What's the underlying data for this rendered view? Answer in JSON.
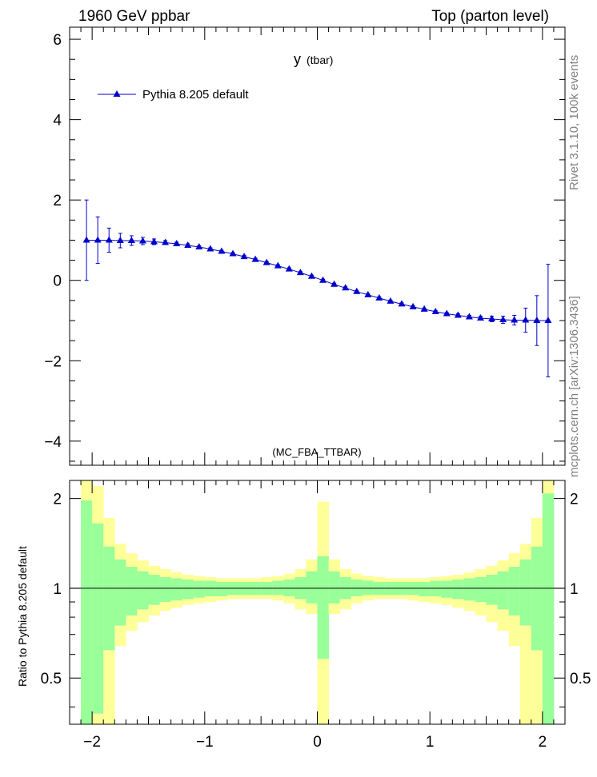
{
  "header": {
    "left": "1960 GeV ppbar",
    "right": "Top (parton level)"
  },
  "side_labels": {
    "rivet": "Rivet 3.1.10,  100k events",
    "mcplots": "mcplots.cern.ch [arXiv:1306.3436]"
  },
  "colors": {
    "series": "#0000cc",
    "band_inner": "#99ff99",
    "band_outer": "#ffff99",
    "watermark": "#999999"
  },
  "chart_data": [
    {
      "type": "line",
      "title": "y",
      "title_suffix": "(tbar)",
      "watermark": "(MC_FBA_TTBAR)",
      "ylim": [
        -4.6,
        6.3
      ],
      "xlim": [
        -2.2,
        2.2
      ],
      "yticks": [
        -4,
        -2,
        0,
        2,
        4,
        6
      ],
      "ytick_labels": [
        "−4",
        "−2",
        "0",
        "2",
        "4",
        "6"
      ],
      "legend": {
        "position": "top-left"
      },
      "series": [
        {
          "name": "Pythia 8.205 default",
          "marker": "triangle",
          "x": [
            -2.05,
            -1.95,
            -1.85,
            -1.75,
            -1.65,
            -1.55,
            -1.45,
            -1.35,
            -1.25,
            -1.15,
            -1.05,
            -0.95,
            -0.85,
            -0.75,
            -0.65,
            -0.55,
            -0.45,
            -0.35,
            -0.25,
            -0.15,
            -0.05,
            0.05,
            0.15,
            0.25,
            0.35,
            0.45,
            0.55,
            0.65,
            0.75,
            0.85,
            0.95,
            1.05,
            1.15,
            1.25,
            1.35,
            1.45,
            1.55,
            1.65,
            1.75,
            1.85,
            1.95,
            2.05
          ],
          "values": [
            1.0,
            1.0,
            1.0,
            0.99,
            0.99,
            0.98,
            0.96,
            0.94,
            0.91,
            0.87,
            0.83,
            0.78,
            0.72,
            0.66,
            0.59,
            0.52,
            0.44,
            0.36,
            0.28,
            0.19,
            0.1,
            0.0,
            -0.1,
            -0.19,
            -0.28,
            -0.36,
            -0.44,
            -0.52,
            -0.59,
            -0.66,
            -0.72,
            -0.78,
            -0.83,
            -0.87,
            -0.91,
            -0.94,
            -0.96,
            -0.98,
            -0.99,
            -0.99,
            -1.0,
            -1.0
          ],
          "errors": [
            1.0,
            0.58,
            0.3,
            0.18,
            0.12,
            0.09,
            0.07,
            0.05,
            0.04,
            0.04,
            0.03,
            0.03,
            0.03,
            0.03,
            0.03,
            0.03,
            0.03,
            0.03,
            0.03,
            0.03,
            0.03,
            0.03,
            0.03,
            0.03,
            0.03,
            0.03,
            0.03,
            0.03,
            0.03,
            0.03,
            0.03,
            0.03,
            0.03,
            0.04,
            0.04,
            0.05,
            0.07,
            0.09,
            0.12,
            0.3,
            0.62,
            1.4
          ]
        }
      ]
    },
    {
      "type": "area",
      "ylabel": "Ratio to Pythia 8.205 default",
      "ylim": [
        0.35,
        2.3
      ],
      "xlim": [
        -2.2,
        2.2
      ],
      "yticks": [
        0.5,
        1,
        2
      ],
      "ytick_labels": [
        "0.5",
        "1",
        "2"
      ],
      "xticks": [
        -2,
        -1,
        0,
        1,
        2
      ],
      "xtick_labels": [
        "−2",
        "−1",
        "0",
        "1",
        "2"
      ],
      "reference_line": 1,
      "bin_edges": [
        -2.1,
        -2.0,
        -1.9,
        -1.8,
        -1.7,
        -1.6,
        -1.5,
        -1.4,
        -1.3,
        -1.2,
        -1.1,
        -1.0,
        -0.9,
        -0.8,
        -0.7,
        -0.6,
        -0.5,
        -0.4,
        -0.3,
        -0.2,
        -0.1,
        0.0,
        0.1,
        0.2,
        0.3,
        0.4,
        0.5,
        0.6,
        0.7,
        0.8,
        0.9,
        1.0,
        1.1,
        1.2,
        1.3,
        1.4,
        1.5,
        1.6,
        1.7,
        1.8,
        1.9,
        2.0,
        2.1
      ],
      "inner_band": {
        "upper": [
          1.97,
          1.65,
          1.38,
          1.25,
          1.18,
          1.14,
          1.11,
          1.09,
          1.08,
          1.07,
          1.06,
          1.06,
          1.05,
          1.05,
          1.05,
          1.05,
          1.05,
          1.06,
          1.07,
          1.09,
          1.14,
          1.28,
          1.14,
          1.09,
          1.07,
          1.06,
          1.05,
          1.05,
          1.05,
          1.05,
          1.05,
          1.06,
          1.06,
          1.07,
          1.08,
          1.09,
          1.11,
          1.14,
          1.18,
          1.25,
          1.38,
          2.08
        ],
        "lower": [
          0.35,
          0.38,
          0.62,
          0.75,
          0.81,
          0.85,
          0.88,
          0.9,
          0.91,
          0.92,
          0.93,
          0.94,
          0.94,
          0.95,
          0.95,
          0.95,
          0.95,
          0.95,
          0.94,
          0.92,
          0.89,
          0.58,
          0.89,
          0.92,
          0.94,
          0.95,
          0.95,
          0.95,
          0.95,
          0.95,
          0.94,
          0.94,
          0.93,
          0.92,
          0.91,
          0.9,
          0.88,
          0.85,
          0.81,
          0.75,
          0.62,
          0.35
        ]
      },
      "outer_band": {
        "upper": [
          2.3,
          2.2,
          1.72,
          1.41,
          1.31,
          1.24,
          1.19,
          1.16,
          1.13,
          1.11,
          1.1,
          1.09,
          1.08,
          1.08,
          1.08,
          1.08,
          1.09,
          1.1,
          1.12,
          1.16,
          1.25,
          1.95,
          1.25,
          1.16,
          1.12,
          1.1,
          1.09,
          1.08,
          1.08,
          1.08,
          1.08,
          1.09,
          1.1,
          1.11,
          1.13,
          1.16,
          1.19,
          1.24,
          1.31,
          1.41,
          1.72,
          2.3
        ],
        "lower": [
          0.35,
          0.35,
          0.35,
          0.64,
          0.72,
          0.77,
          0.81,
          0.84,
          0.86,
          0.88,
          0.89,
          0.9,
          0.91,
          0.92,
          0.92,
          0.92,
          0.92,
          0.91,
          0.89,
          0.85,
          0.82,
          0.35,
          0.82,
          0.85,
          0.89,
          0.91,
          0.92,
          0.92,
          0.92,
          0.91,
          0.9,
          0.89,
          0.88,
          0.86,
          0.84,
          0.81,
          0.77,
          0.72,
          0.64,
          0.35,
          0.35,
          0.35
        ]
      }
    }
  ]
}
